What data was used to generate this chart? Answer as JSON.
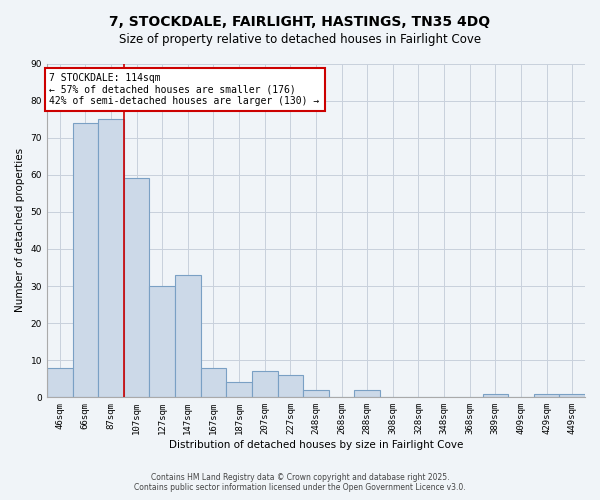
{
  "title": "7, STOCKDALE, FAIRLIGHT, HASTINGS, TN35 4DQ",
  "subtitle": "Size of property relative to detached houses in Fairlight Cove",
  "xlabel": "Distribution of detached houses by size in Fairlight Cove",
  "ylabel": "Number of detached properties",
  "bar_labels": [
    "46sqm",
    "66sqm",
    "87sqm",
    "107sqm",
    "127sqm",
    "147sqm",
    "167sqm",
    "187sqm",
    "207sqm",
    "227sqm",
    "248sqm",
    "268sqm",
    "288sqm",
    "308sqm",
    "328sqm",
    "348sqm",
    "368sqm",
    "389sqm",
    "409sqm",
    "429sqm",
    "449sqm"
  ],
  "bar_values": [
    8,
    74,
    75,
    59,
    30,
    33,
    8,
    4,
    7,
    6,
    2,
    0,
    2,
    0,
    0,
    0,
    0,
    1,
    0,
    1,
    1
  ],
  "bar_color": "#ccd9e8",
  "bar_edge_color": "#7aa0c4",
  "ylim": [
    0,
    90
  ],
  "yticks": [
    0,
    10,
    20,
    30,
    40,
    50,
    60,
    70,
    80,
    90
  ],
  "vline_x": 2.5,
  "annotation_title": "7 STOCKDALE: 114sqm",
  "annotation_line1": "← 57% of detached houses are smaller (176)",
  "annotation_line2": "42% of semi-detached houses are larger (130) →",
  "annotation_box_color": "#ffffff",
  "annotation_border_color": "#cc0000",
  "vline_color": "#cc0000",
  "bg_color": "#f0f4f8",
  "grid_color": "#c8d0dc",
  "footer1": "Contains HM Land Registry data © Crown copyright and database right 2025.",
  "footer2": "Contains public sector information licensed under the Open Government Licence v3.0.",
  "title_fontsize": 10,
  "subtitle_fontsize": 8.5,
  "axis_label_fontsize": 7.5,
  "tick_fontsize": 6.5,
  "annotation_fontsize": 7,
  "footer_fontsize": 5.5
}
